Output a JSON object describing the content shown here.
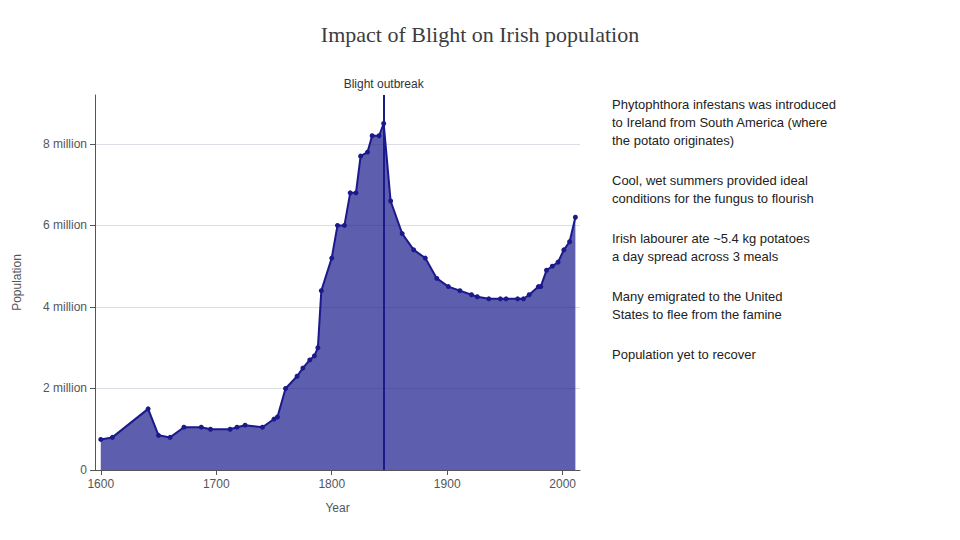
{
  "chart_data": {
    "type": "line",
    "title": "Impact of Blight on Irish population",
    "x_label": "Year",
    "y_label": "Population",
    "color": "#1a1a8c",
    "marker": "circle",
    "grid": true,
    "xlim": [
      1595,
      2015
    ],
    "xticks": [
      1600,
      1700,
      1800,
      1900,
      2000
    ],
    "ylim": [
      0,
      9200000
    ],
    "yticks": [
      0,
      {
        "value": 2000000,
        "label": "2 million"
      },
      {
        "value": 4000000,
        "label": "4 million"
      },
      {
        "value": 6000000,
        "label": "6 million"
      },
      {
        "value": 8000000,
        "label": "8 million"
      }
    ],
    "x": [
      1600,
      1610,
      1641,
      1650,
      1660,
      1672,
      1687,
      1695,
      1712,
      1718,
      1725,
      1740,
      1750,
      1753,
      1760,
      1770,
      1775,
      1781,
      1785,
      1788,
      1791,
      1800,
      1805,
      1811,
      1816,
      1821,
      1825,
      1831,
      1835,
      1841,
      1845,
      1851,
      1861,
      1871,
      1881,
      1891,
      1901,
      1911,
      1921,
      1926,
      1936,
      1946,
      1951,
      1961,
      1966,
      1971,
      1979,
      1981,
      1986,
      1991,
      1996,
      2001,
      2006,
      2011
    ],
    "values": [
      750000,
      800000,
      1500000,
      850000,
      800000,
      1050000,
      1050000,
      1000000,
      1000000,
      1050000,
      1100000,
      1050000,
      1250000,
      1300000,
      2000000,
      2300000,
      2500000,
      2700000,
      2800000,
      3000000,
      4400000,
      5200000,
      6000000,
      6000000,
      6800000,
      6800000,
      7700000,
      7800000,
      8200000,
      8200000,
      8500000,
      6600000,
      5800000,
      5400000,
      5200000,
      4700000,
      4500000,
      4400000,
      4300000,
      4250000,
      4200000,
      4200000,
      4200000,
      4200000,
      4200000,
      4300000,
      4500000,
      4500000,
      4900000,
      5000000,
      5100000,
      5400000,
      5600000,
      6200000
    ],
    "vline": {
      "x": 1845,
      "label": "Blight outbreak"
    },
    "annotations": [
      "Phytophthora infestans was introduced\nto Ireland from South America (where\nthe potato originates)",
      "Cool, wet summers provided ideal\nconditions for the fungus to flourish",
      "Irish labourer ate ~5.4 kg potatoes\na day spread across 3 meals",
      "Many emigrated to the United\nStates to flee from the famine",
      "Population yet to recover"
    ]
  }
}
